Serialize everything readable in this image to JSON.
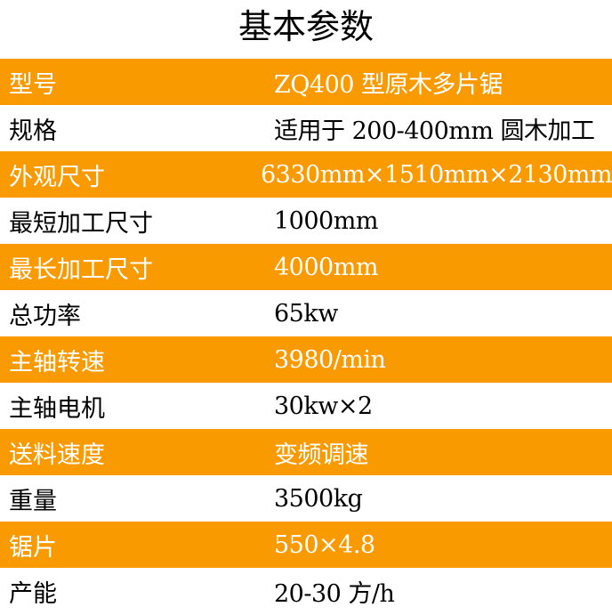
{
  "title": "基本参数",
  "accent_color": "#F99A00",
  "rows": [
    {
      "label": "型号",
      "value": "ZQ400 型原木多片锯"
    },
    {
      "label": "规格",
      "value": "适用于 200-400mm 圆木加工"
    },
    {
      "label": "外观尺寸",
      "value": "6330mm×1510mm×2130mm"
    },
    {
      "label": "最短加工尺寸",
      "value": "1000mm"
    },
    {
      "label": "最长加工尺寸",
      "value": "4000mm"
    },
    {
      "label": "总功率",
      "value": "65kw"
    },
    {
      "label": "主轴转速",
      "value": "3980/min"
    },
    {
      "label": "主轴电机",
      "value": "30kw×2"
    },
    {
      "label": "送料速度",
      "value": "变频调速"
    },
    {
      "label": "重量",
      "value": "3500kg"
    },
    {
      "label": "锯片",
      "value": "550×4.8"
    },
    {
      "label": "产能",
      "value": "20-30 方/h"
    }
  ]
}
